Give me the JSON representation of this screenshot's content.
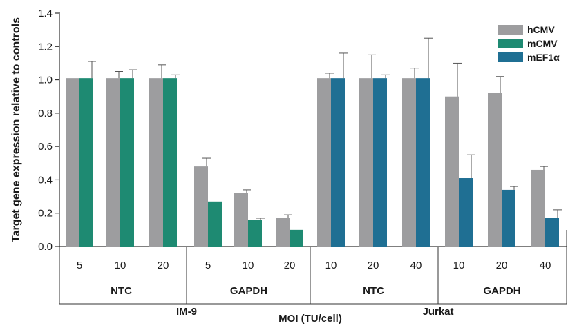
{
  "chart_data": {
    "type": "bar",
    "ylabel": "Target gene expression relative to controls",
    "xlabel": "MOI (TU/cell)",
    "ylim": [
      0,
      1.4
    ],
    "yticks": [
      "0.0",
      "0.2",
      "0.4",
      "0.6",
      "0.8",
      "1.0",
      "1.2",
      "1.4"
    ],
    "legend": {
      "position": "top-right",
      "entries": [
        {
          "name": "hCMV",
          "color": "#9d9d9f"
        },
        {
          "name": "mCMV",
          "color": "#1e8a72"
        },
        {
          "name": "mEF1α",
          "color": "#1f6f93"
        }
      ]
    },
    "cell_lines": [
      {
        "label": "IM-9",
        "span": [
          0,
          5
        ]
      },
      {
        "label": "Jurkat",
        "span": [
          6,
          11
        ]
      }
    ],
    "target_groups": [
      {
        "label": "NTC",
        "span": [
          0,
          2
        ]
      },
      {
        "label": "GAPDH",
        "span": [
          3,
          5
        ]
      },
      {
        "label": "NTC",
        "span": [
          6,
          8
        ]
      },
      {
        "label": "GAPDH",
        "span": [
          9,
          11
        ]
      }
    ],
    "categories": [
      "5",
      "10",
      "20",
      "5",
      "10",
      "20",
      "10",
      "20",
      "40",
      "10",
      "20",
      "40"
    ],
    "groups": [
      {
        "moi": "5",
        "bars": [
          {
            "series": "hCMV",
            "value": 1.01,
            "err": 0
          },
          {
            "series": "mCMV",
            "value": 1.01,
            "err": 0.1
          }
        ]
      },
      {
        "moi": "10",
        "bars": [
          {
            "series": "hCMV",
            "value": 1.01,
            "err": 0.04
          },
          {
            "series": "mCMV",
            "value": 1.01,
            "err": 0.05
          }
        ]
      },
      {
        "moi": "20",
        "bars": [
          {
            "series": "hCMV",
            "value": 1.01,
            "err": 0.08
          },
          {
            "series": "mCMV",
            "value": 1.01,
            "err": 0.02
          }
        ]
      },
      {
        "moi": "5",
        "bars": [
          {
            "series": "hCMV",
            "value": 0.48,
            "err": 0.05
          },
          {
            "series": "mCMV",
            "value": 0.27,
            "err": 0
          }
        ]
      },
      {
        "moi": "10",
        "bars": [
          {
            "series": "hCMV",
            "value": 0.32,
            "err": 0.02
          },
          {
            "series": "mCMV",
            "value": 0.16,
            "err": 0.01
          }
        ]
      },
      {
        "moi": "20",
        "bars": [
          {
            "series": "hCMV",
            "value": 0.17,
            "err": 0.02
          },
          {
            "series": "mCMV",
            "value": 0.1,
            "err": 0
          }
        ]
      },
      {
        "moi": "10",
        "bars": [
          {
            "series": "hCMV",
            "value": 1.01,
            "err": 0.03
          },
          {
            "series": "mEF1α",
            "value": 1.01,
            "err": 0.15
          }
        ]
      },
      {
        "moi": "20",
        "bars": [
          {
            "series": "hCMV",
            "value": 1.01,
            "err": 0.14
          },
          {
            "series": "mEF1α",
            "value": 1.01,
            "err": 0.02
          }
        ]
      },
      {
        "moi": "40",
        "bars": [
          {
            "series": "hCMV",
            "value": 1.01,
            "err": 0.06
          },
          {
            "series": "mEF1α",
            "value": 1.01,
            "err": 0.24
          }
        ]
      },
      {
        "moi": "10",
        "bars": [
          {
            "series": "hCMV",
            "value": 0.9,
            "err": 0.2
          },
          {
            "series": "mEF1α",
            "value": 0.41,
            "err": 0.14
          }
        ]
      },
      {
        "moi": "20",
        "bars": [
          {
            "series": "hCMV",
            "value": 0.92,
            "err": 0.1
          },
          {
            "series": "mEF1α",
            "value": 0.34,
            "err": 0.02
          }
        ]
      },
      {
        "moi": "40",
        "bars": [
          {
            "series": "hCMV",
            "value": 0.46,
            "err": 0.02
          },
          {
            "series": "mEF1α",
            "value": 0.17,
            "err": 0.05
          }
        ]
      }
    ]
  }
}
